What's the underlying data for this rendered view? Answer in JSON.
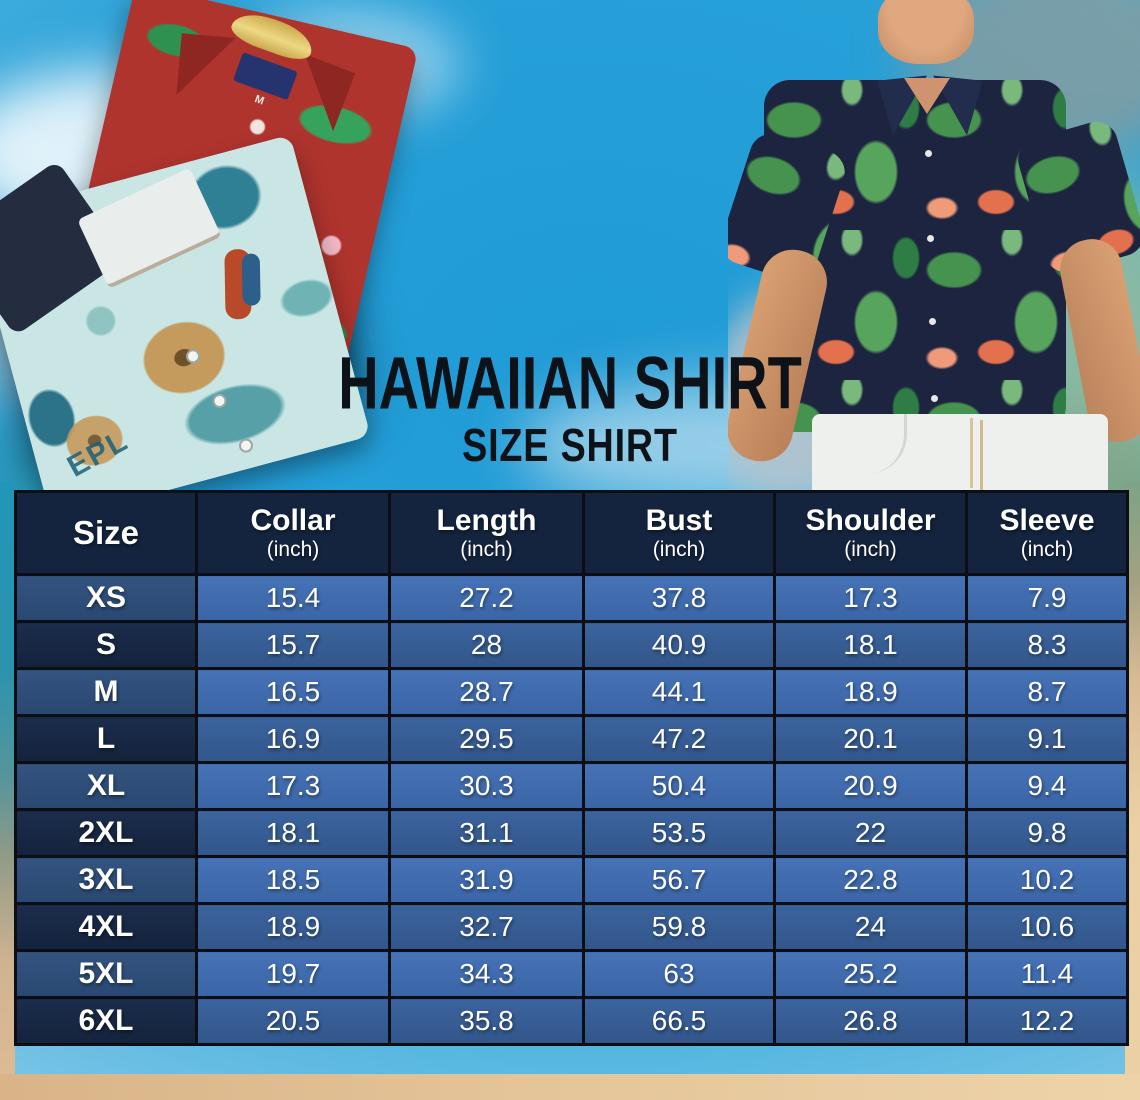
{
  "title": "HAWAIIAN SHIRT",
  "subtitle": "SIZE SHIRT",
  "hero": {
    "images": [
      {
        "name": "folded-hawaiian-shirts-photo"
      },
      {
        "name": "man-wearing-flamingo-shirt-photo"
      }
    ],
    "shirt_print_text": "EPL",
    "collar_size_label": "M"
  },
  "size_table": {
    "columns": [
      {
        "label": "Size",
        "unit": ""
      },
      {
        "label": "Collar",
        "unit": "(inch)"
      },
      {
        "label": "Length",
        "unit": "(inch)"
      },
      {
        "label": "Bust",
        "unit": "(inch)"
      },
      {
        "label": "Shoulder",
        "unit": "(inch)"
      },
      {
        "label": "Sleeve",
        "unit": "(inch)"
      }
    ],
    "rows": [
      {
        "size": "XS",
        "values": [
          "15.4",
          "27.2",
          "37.8",
          "17.3",
          "7.9"
        ]
      },
      {
        "size": "S",
        "values": [
          "15.7",
          "28",
          "40.9",
          "18.1",
          "8.3"
        ]
      },
      {
        "size": "M",
        "values": [
          "16.5",
          "28.7",
          "44.1",
          "18.9",
          "8.7"
        ]
      },
      {
        "size": "L",
        "values": [
          "16.9",
          "29.5",
          "47.2",
          "20.1",
          "9.1"
        ]
      },
      {
        "size": "XL",
        "values": [
          "17.3",
          "30.3",
          "50.4",
          "20.9",
          "9.4"
        ]
      },
      {
        "size": "2XL",
        "values": [
          "18.1",
          "31.1",
          "53.5",
          "22",
          "9.8"
        ]
      },
      {
        "size": "3XL",
        "values": [
          "18.5",
          "31.9",
          "56.7",
          "22.8",
          "10.2"
        ]
      },
      {
        "size": "4XL",
        "values": [
          "18.9",
          "32.7",
          "59.8",
          "24",
          "10.6"
        ]
      },
      {
        "size": "5XL",
        "values": [
          "19.7",
          "34.3",
          "63",
          "25.2",
          "11.4"
        ]
      },
      {
        "size": "6XL",
        "values": [
          "20.5",
          "35.8",
          "66.5",
          "26.8",
          "12.2"
        ]
      }
    ]
  },
  "colors": {
    "header_navy": "#14243e",
    "row_blue_light": "#3e6cb0",
    "row_blue_dark": "#355a90",
    "size_cell_light": "#2e4f7d",
    "size_cell_dark": "#16263f",
    "table_border": "#0b0f15",
    "title_ink": "#0d1118",
    "sky_blue": "#1f9bd6",
    "sand": "#e2c196"
  },
  "chart_data": {
    "type": "table",
    "title": "HAWAIIAN SHIRT — SIZE SHIRT",
    "columns": [
      "Size",
      "Collar (inch)",
      "Length (inch)",
      "Bust (inch)",
      "Shoulder (inch)",
      "Sleeve (inch)"
    ],
    "rows": [
      [
        "XS",
        15.4,
        27.2,
        37.8,
        17.3,
        7.9
      ],
      [
        "S",
        15.7,
        28,
        40.9,
        18.1,
        8.3
      ],
      [
        "M",
        16.5,
        28.7,
        44.1,
        18.9,
        8.7
      ],
      [
        "L",
        16.9,
        29.5,
        47.2,
        20.1,
        9.1
      ],
      [
        "XL",
        17.3,
        30.3,
        50.4,
        20.9,
        9.4
      ],
      [
        "2XL",
        18.1,
        31.1,
        53.5,
        22,
        9.8
      ],
      [
        "3XL",
        18.5,
        31.9,
        56.7,
        22.8,
        10.2
      ],
      [
        "4XL",
        18.9,
        32.7,
        59.8,
        24,
        10.6
      ],
      [
        "5XL",
        19.7,
        34.3,
        63,
        25.2,
        11.4
      ],
      [
        "6XL",
        20.5,
        35.8,
        66.5,
        26.8,
        12.2
      ]
    ]
  }
}
